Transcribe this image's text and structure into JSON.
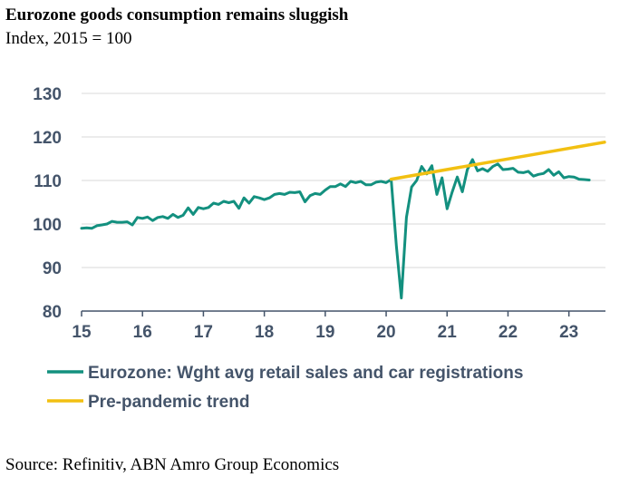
{
  "header": {
    "title": "Eurozone goods consumption remains sluggish",
    "subtitle": "Index, 2015 = 100"
  },
  "footer": {
    "source": "Source: Refinitiv, ABN Amro Group Economics"
  },
  "colors": {
    "series_main": "#13907f",
    "series_trend": "#f2c012",
    "gridline": "#d9d9d9",
    "axis": "#44546a",
    "tick_text": "#44546a"
  },
  "chart_data": {
    "type": "line",
    "title": "Eurozone goods consumption remains sluggish",
    "subtitle": "Index, 2015 = 100",
    "xlabel": "",
    "ylabel": "",
    "xlim": [
      2015,
      2023.6
    ],
    "ylim": [
      80,
      130
    ],
    "yticks": [
      80,
      90,
      100,
      110,
      120,
      130
    ],
    "xticks": [
      {
        "value": 2015,
        "label": "15"
      },
      {
        "value": 2016,
        "label": "16"
      },
      {
        "value": 2017,
        "label": "17"
      },
      {
        "value": 2018,
        "label": "18"
      },
      {
        "value": 2019,
        "label": "19"
      },
      {
        "value": 2020,
        "label": "20"
      },
      {
        "value": 2021,
        "label": "21"
      },
      {
        "value": 2022,
        "label": "22"
      },
      {
        "value": 2023,
        "label": "23"
      }
    ],
    "grid": true,
    "legend_position": "bottom",
    "series": [
      {
        "name": "Eurozone: Wght avg retail sales and car registrations",
        "color": "#13907f",
        "points": [
          [
            2015.0,
            99.0
          ],
          [
            2015.083,
            99.1
          ],
          [
            2015.167,
            99.0
          ],
          [
            2015.25,
            99.6
          ],
          [
            2015.333,
            99.8
          ],
          [
            2015.417,
            100.0
          ],
          [
            2015.5,
            100.6
          ],
          [
            2015.583,
            100.4
          ],
          [
            2015.667,
            100.4
          ],
          [
            2015.75,
            100.5
          ],
          [
            2015.833,
            99.8
          ],
          [
            2015.917,
            101.5
          ],
          [
            2016.0,
            101.3
          ],
          [
            2016.083,
            101.6
          ],
          [
            2016.167,
            100.8
          ],
          [
            2016.25,
            101.5
          ],
          [
            2016.333,
            101.7
          ],
          [
            2016.417,
            101.3
          ],
          [
            2016.5,
            102.2
          ],
          [
            2016.583,
            101.5
          ],
          [
            2016.667,
            102.0
          ],
          [
            2016.75,
            103.7
          ],
          [
            2016.833,
            102.2
          ],
          [
            2016.917,
            103.8
          ],
          [
            2017.0,
            103.5
          ],
          [
            2017.083,
            103.8
          ],
          [
            2017.167,
            104.8
          ],
          [
            2017.25,
            104.5
          ],
          [
            2017.333,
            105.2
          ],
          [
            2017.417,
            104.9
          ],
          [
            2017.5,
            105.2
          ],
          [
            2017.583,
            103.6
          ],
          [
            2017.667,
            106.0
          ],
          [
            2017.75,
            104.8
          ],
          [
            2017.833,
            106.3
          ],
          [
            2017.917,
            106.0
          ],
          [
            2018.0,
            105.6
          ],
          [
            2018.083,
            106.0
          ],
          [
            2018.167,
            106.8
          ],
          [
            2018.25,
            107.0
          ],
          [
            2018.333,
            106.8
          ],
          [
            2018.417,
            107.3
          ],
          [
            2018.5,
            107.2
          ],
          [
            2018.583,
            107.4
          ],
          [
            2018.667,
            105.1
          ],
          [
            2018.75,
            106.5
          ],
          [
            2018.833,
            107.0
          ],
          [
            2018.917,
            106.8
          ],
          [
            2019.0,
            107.8
          ],
          [
            2019.083,
            108.6
          ],
          [
            2019.167,
            108.6
          ],
          [
            2019.25,
            109.2
          ],
          [
            2019.333,
            108.6
          ],
          [
            2019.417,
            109.8
          ],
          [
            2019.5,
            109.5
          ],
          [
            2019.583,
            109.8
          ],
          [
            2019.667,
            109.0
          ],
          [
            2019.75,
            109.0
          ],
          [
            2019.833,
            109.6
          ],
          [
            2019.917,
            109.8
          ],
          [
            2020.0,
            109.5
          ],
          [
            2020.083,
            110.2
          ],
          [
            2020.167,
            95.0
          ],
          [
            2020.25,
            83.0
          ],
          [
            2020.333,
            101.5
          ],
          [
            2020.417,
            108.5
          ],
          [
            2020.5,
            110.0
          ],
          [
            2020.583,
            113.2
          ],
          [
            2020.667,
            111.5
          ],
          [
            2020.75,
            113.4
          ],
          [
            2020.833,
            106.8
          ],
          [
            2020.917,
            110.6
          ],
          [
            2021.0,
            103.5
          ],
          [
            2021.083,
            107.3
          ],
          [
            2021.167,
            110.8
          ],
          [
            2021.25,
            107.4
          ],
          [
            2021.333,
            112.5
          ],
          [
            2021.417,
            114.8
          ],
          [
            2021.5,
            112.2
          ],
          [
            2021.583,
            112.7
          ],
          [
            2021.667,
            112.1
          ],
          [
            2021.75,
            113.2
          ],
          [
            2021.833,
            113.8
          ],
          [
            2021.917,
            112.5
          ],
          [
            2022.0,
            112.6
          ],
          [
            2022.083,
            112.8
          ],
          [
            2022.167,
            111.9
          ],
          [
            2022.25,
            111.8
          ],
          [
            2022.333,
            112.1
          ],
          [
            2022.417,
            111.0
          ],
          [
            2022.5,
            111.4
          ],
          [
            2022.583,
            111.6
          ],
          [
            2022.667,
            112.5
          ],
          [
            2022.75,
            111.2
          ],
          [
            2022.833,
            112.0
          ],
          [
            2022.917,
            110.6
          ],
          [
            2023.0,
            110.9
          ],
          [
            2023.083,
            110.8
          ],
          [
            2023.167,
            110.3
          ],
          [
            2023.25,
            110.2
          ],
          [
            2023.333,
            110.1
          ]
        ]
      },
      {
        "name": "Pre-pandemic trend",
        "color": "#f2c012",
        "points": [
          [
            2020.083,
            110.3
          ],
          [
            2023.583,
            118.8
          ]
        ]
      }
    ]
  }
}
